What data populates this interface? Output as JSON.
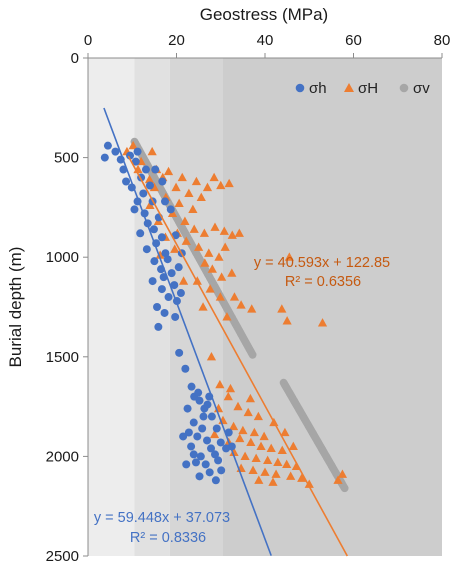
{
  "chart_data": {
    "type": "scatter",
    "xlabel": "Geostress (MPa)",
    "ylabel": "Burial depth (m)",
    "xlim": [
      0,
      80
    ],
    "ylim": [
      2500,
      0
    ],
    "x_axis_position": "top",
    "y_axis_inverted": true,
    "x_ticks": [
      "0",
      "20",
      "40",
      "60",
      "80"
    ],
    "y_ticks": [
      "0",
      "500",
      "1000",
      "1500",
      "2000",
      "2500"
    ],
    "legend_position": "top-right",
    "background_bands": [
      {
        "x_from": 0,
        "x_to": 10.5,
        "color": "#ededed"
      },
      {
        "x_from": 10.5,
        "x_to": 18.5,
        "color": "#e1e1e1"
      },
      {
        "x_from": 18.5,
        "x_to": 30.5,
        "color": "#d6d6d6"
      },
      {
        "x_from": 30.5,
        "x_to": 80,
        "color": "#cdcdcd"
      }
    ],
    "series": [
      {
        "name": "σh",
        "marker": "circle",
        "color": "#4472c4",
        "points": [
          [
            4.5,
            440
          ],
          [
            3.8,
            500
          ],
          [
            6.2,
            470
          ],
          [
            7.4,
            510
          ],
          [
            8.0,
            560
          ],
          [
            9.5,
            490
          ],
          [
            10.8,
            520
          ],
          [
            11.2,
            470
          ],
          [
            8.6,
            620
          ],
          [
            9.9,
            650
          ],
          [
            12.0,
            600
          ],
          [
            13.1,
            560
          ],
          [
            12.5,
            680
          ],
          [
            11.2,
            720
          ],
          [
            14.0,
            640
          ],
          [
            10.5,
            760
          ],
          [
            12.8,
            780
          ],
          [
            14.6,
            720
          ],
          [
            13.5,
            830
          ],
          [
            11.8,
            880
          ],
          [
            14.9,
            860
          ],
          [
            16.0,
            800
          ],
          [
            15.4,
            930
          ],
          [
            13.3,
            960
          ],
          [
            16.7,
            900
          ],
          [
            17.5,
            980
          ],
          [
            15.0,
            1020
          ],
          [
            16.5,
            1060
          ],
          [
            18.0,
            1010
          ],
          [
            17.1,
            1100
          ],
          [
            14.6,
            1120
          ],
          [
            18.9,
            1080
          ],
          [
            19.5,
            1140
          ],
          [
            16.7,
            1160
          ],
          [
            18.2,
            1200
          ],
          [
            20.1,
            1220
          ],
          [
            15.6,
            1250
          ],
          [
            17.3,
            1280
          ],
          [
            19.7,
            1300
          ],
          [
            15.9,
            1350
          ],
          [
            21.0,
            1180
          ],
          [
            20.5,
            1050
          ],
          [
            21.2,
            980
          ],
          [
            19.8,
            890
          ],
          [
            17.4,
            720
          ],
          [
            15.2,
            560
          ],
          [
            16.8,
            620
          ],
          [
            18.7,
            760
          ],
          [
            20.6,
            1480
          ],
          [
            22.0,
            1560
          ],
          [
            23.4,
            1650
          ],
          [
            24.0,
            1700
          ],
          [
            25.2,
            1720
          ],
          [
            22.5,
            1760
          ],
          [
            27.0,
            1740
          ],
          [
            26.1,
            1800
          ],
          [
            23.9,
            1830
          ],
          [
            25.8,
            1860
          ],
          [
            28.0,
            1800
          ],
          [
            22.8,
            1880
          ],
          [
            24.7,
            1900
          ],
          [
            26.9,
            1920
          ],
          [
            29.1,
            1860
          ],
          [
            23.3,
            1950
          ],
          [
            27.8,
            1960
          ],
          [
            25.5,
            2000
          ],
          [
            28.7,
            1990
          ],
          [
            30.0,
            1930
          ],
          [
            24.4,
            2030
          ],
          [
            26.6,
            2040
          ],
          [
            29.4,
            2020
          ],
          [
            31.2,
            1960
          ],
          [
            27.5,
            2080
          ],
          [
            25.2,
            2100
          ],
          [
            30.1,
            2070
          ],
          [
            28.9,
            2120
          ],
          [
            23.9,
            1990
          ],
          [
            26.3,
            1760
          ],
          [
            31.8,
            1880
          ],
          [
            32.5,
            1950
          ],
          [
            21.5,
            1900
          ],
          [
            22.2,
            2040
          ],
          [
            24.9,
            1680
          ],
          [
            27.4,
            1700
          ]
        ]
      },
      {
        "name": "σH",
        "marker": "triangle",
        "color": "#ed7d31",
        "points": [
          [
            10.2,
            440
          ],
          [
            8.8,
            470
          ],
          [
            12.0,
            520
          ],
          [
            11.3,
            560
          ],
          [
            14.5,
            470
          ],
          [
            13.9,
            610
          ],
          [
            15.5,
            560
          ],
          [
            16.9,
            600
          ],
          [
            18.2,
            570
          ],
          [
            15.0,
            650
          ],
          [
            17.6,
            700
          ],
          [
            19.9,
            650
          ],
          [
            21.3,
            600
          ],
          [
            20.6,
            730
          ],
          [
            22.8,
            680
          ],
          [
            24.5,
            620
          ],
          [
            19.1,
            780
          ],
          [
            21.9,
            820
          ],
          [
            23.7,
            760
          ],
          [
            25.6,
            700
          ],
          [
            27.0,
            650
          ],
          [
            28.5,
            600
          ],
          [
            30.0,
            640
          ],
          [
            31.9,
            630
          ],
          [
            24.0,
            860
          ],
          [
            26.3,
            880
          ],
          [
            28.7,
            850
          ],
          [
            30.8,
            870
          ],
          [
            32.6,
            890
          ],
          [
            22.2,
            920
          ],
          [
            25.0,
            950
          ],
          [
            27.3,
            980
          ],
          [
            29.6,
            1000
          ],
          [
            31.0,
            950
          ],
          [
            26.4,
            1030
          ],
          [
            28.1,
            1060
          ],
          [
            30.2,
            1100
          ],
          [
            32.5,
            1080
          ],
          [
            24.7,
            1120
          ],
          [
            27.6,
            1160
          ],
          [
            29.9,
            1200
          ],
          [
            26.0,
            1250
          ],
          [
            31.4,
            1300
          ],
          [
            33.1,
            1200
          ],
          [
            34.6,
            1240
          ],
          [
            37.0,
            1260
          ],
          [
            34.2,
            880
          ],
          [
            45.5,
            1000
          ],
          [
            43.8,
            1260
          ],
          [
            45.0,
            1320
          ],
          [
            53.0,
            1330
          ],
          [
            17.5,
            900
          ],
          [
            19.6,
            960
          ],
          [
            15.9,
            820
          ],
          [
            20.2,
            880
          ],
          [
            14.0,
            740
          ],
          [
            16.3,
            990
          ],
          [
            21.6,
            1120
          ],
          [
            27.9,
            1500
          ],
          [
            29.8,
            1640
          ],
          [
            31.7,
            1700
          ],
          [
            33.9,
            1750
          ],
          [
            36.2,
            1780
          ],
          [
            30.5,
            1820
          ],
          [
            32.9,
            1850
          ],
          [
            35.0,
            1870
          ],
          [
            37.6,
            1880
          ],
          [
            39.8,
            1900
          ],
          [
            34.3,
            1910
          ],
          [
            36.8,
            1930
          ],
          [
            39.1,
            1950
          ],
          [
            41.4,
            1960
          ],
          [
            43.9,
            1970
          ],
          [
            33.0,
            1980
          ],
          [
            35.5,
            2000
          ],
          [
            38.0,
            2010
          ],
          [
            40.6,
            2020
          ],
          [
            42.9,
            2030
          ],
          [
            44.9,
            2040
          ],
          [
            47.1,
            2050
          ],
          [
            34.6,
            2060
          ],
          [
            37.3,
            2070
          ],
          [
            40.0,
            2080
          ],
          [
            42.5,
            2090
          ],
          [
            45.8,
            2100
          ],
          [
            48.3,
            2110
          ],
          [
            38.6,
            2120
          ],
          [
            41.8,
            2130
          ],
          [
            50.0,
            2140
          ],
          [
            57.5,
            2090
          ],
          [
            56.5,
            2120
          ],
          [
            32.2,
            1660
          ],
          [
            36.7,
            1710
          ],
          [
            29.5,
            1760
          ],
          [
            31.8,
            1930
          ],
          [
            28.6,
            1890
          ],
          [
            44.5,
            1880
          ],
          [
            46.4,
            1950
          ],
          [
            42.0,
            1830
          ],
          [
            38.5,
            1800
          ]
        ]
      },
      {
        "name": "σv",
        "marker": "circle",
        "color": "#a6a6a6",
        "generated_segments": [
          {
            "depth_from": 420,
            "depth_to": 1490,
            "n": 180,
            "stress_at_from": 10.5,
            "stress_at_to": 37.2
          },
          {
            "depth_from": 1630,
            "depth_to": 2160,
            "n": 100,
            "stress_at_from": 44.2,
            "stress_at_to": 58.0
          }
        ]
      }
    ],
    "fits": [
      {
        "series": "σh",
        "slope": 59.448,
        "intercept": 37.073,
        "color": "#4472c4",
        "x_from": 3.6,
        "x_to": 41.4,
        "equation": "y = 59.448x + 37.073",
        "r2": "R² = 0.8336"
      },
      {
        "series": "σH",
        "slope": 40.593,
        "intercept": 122.85,
        "color": "#ed7d31",
        "x_from": 9.1,
        "x_to": 58.6,
        "equation": "y = 40.593x + 122.85",
        "r2": "R² = 0.6356"
      }
    ]
  }
}
